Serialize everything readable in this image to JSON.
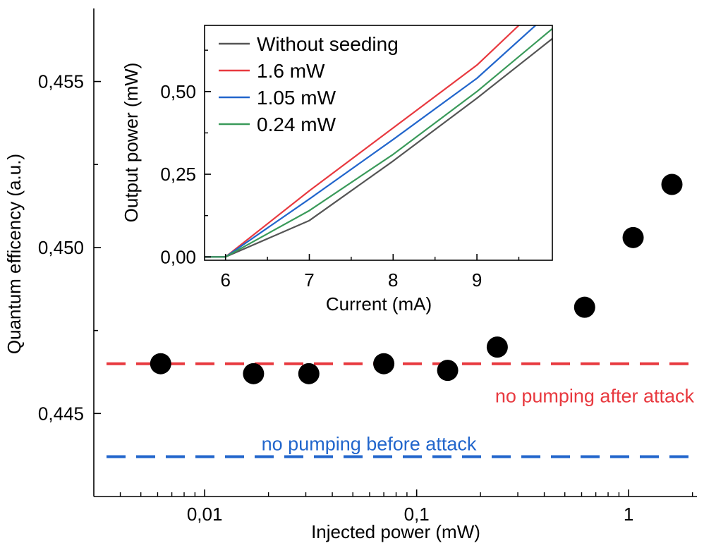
{
  "chart_data": [
    {
      "type": "scatter",
      "title": "",
      "xlabel": "Injected power (mW)",
      "ylabel": "Quantum efficency (a.u.)",
      "x_scale": "log",
      "xlim": [
        0.003,
        2.1
      ],
      "ylim": [
        0.4425,
        0.4572
      ],
      "x_ticks": [
        0.01,
        0.1,
        1
      ],
      "x_tick_labels": [
        "0,01",
        "0,1",
        "1"
      ],
      "y_ticks": [
        0.445,
        0.45,
        0.455
      ],
      "y_tick_labels": [
        "0,445",
        "0,450",
        "0,455"
      ],
      "series": [
        {
          "x": [
            0.0062,
            0.017,
            0.031,
            0.07,
            0.14,
            0.24,
            0.62,
            1.05,
            1.6
          ],
          "y": [
            0.4465,
            0.4462,
            0.4462,
            0.4465,
            0.4463,
            0.447,
            0.4482,
            0.4503,
            0.4519
          ],
          "color": "#000000"
        }
      ],
      "reference_lines": [
        {
          "y": 0.4465,
          "color": "#e8393f",
          "label": "no pumping after attack"
        },
        {
          "y": 0.4437,
          "color": "#2266cc",
          "label": "no pumping before attack"
        }
      ]
    },
    {
      "type": "line",
      "title": "",
      "xlabel": "Current (mA)",
      "ylabel": "Output power (mW)",
      "xlim": [
        5.75,
        9.9
      ],
      "ylim": [
        -0.01,
        0.7
      ],
      "x_ticks": [
        6,
        7,
        8,
        9
      ],
      "x_tick_labels": [
        "6",
        "7",
        "8",
        "9"
      ],
      "y_ticks": [
        0,
        0.25,
        0.5
      ],
      "y_tick_labels": [
        "0,00",
        "0,25",
        "0,50"
      ],
      "legend_position": "top-left",
      "series": [
        {
          "name": "Without seeding",
          "color": "#555555",
          "x": [
            5.75,
            6.0,
            7.0,
            8.0,
            9.0,
            9.9
          ],
          "y": [
            0.0,
            0.0,
            0.11,
            0.29,
            0.48,
            0.66
          ]
        },
        {
          "name": "1.6 mW",
          "color": "#e8393f",
          "x": [
            5.75,
            6.0,
            7.0,
            8.0,
            9.0,
            9.5
          ],
          "y": [
            0.0,
            0.0,
            0.2,
            0.39,
            0.58,
            0.7
          ]
        },
        {
          "name": "1.05 mW",
          "color": "#2266cc",
          "x": [
            5.75,
            6.0,
            7.0,
            8.0,
            9.0,
            9.7
          ],
          "y": [
            0.0,
            0.0,
            0.175,
            0.355,
            0.54,
            0.7
          ]
        },
        {
          "name": "0.24 mW",
          "color": "#3a9a5a",
          "x": [
            5.75,
            6.0,
            7.0,
            8.0,
            9.0,
            9.9
          ],
          "y": [
            0.0,
            0.0,
            0.14,
            0.31,
            0.5,
            0.69
          ]
        }
      ]
    }
  ]
}
